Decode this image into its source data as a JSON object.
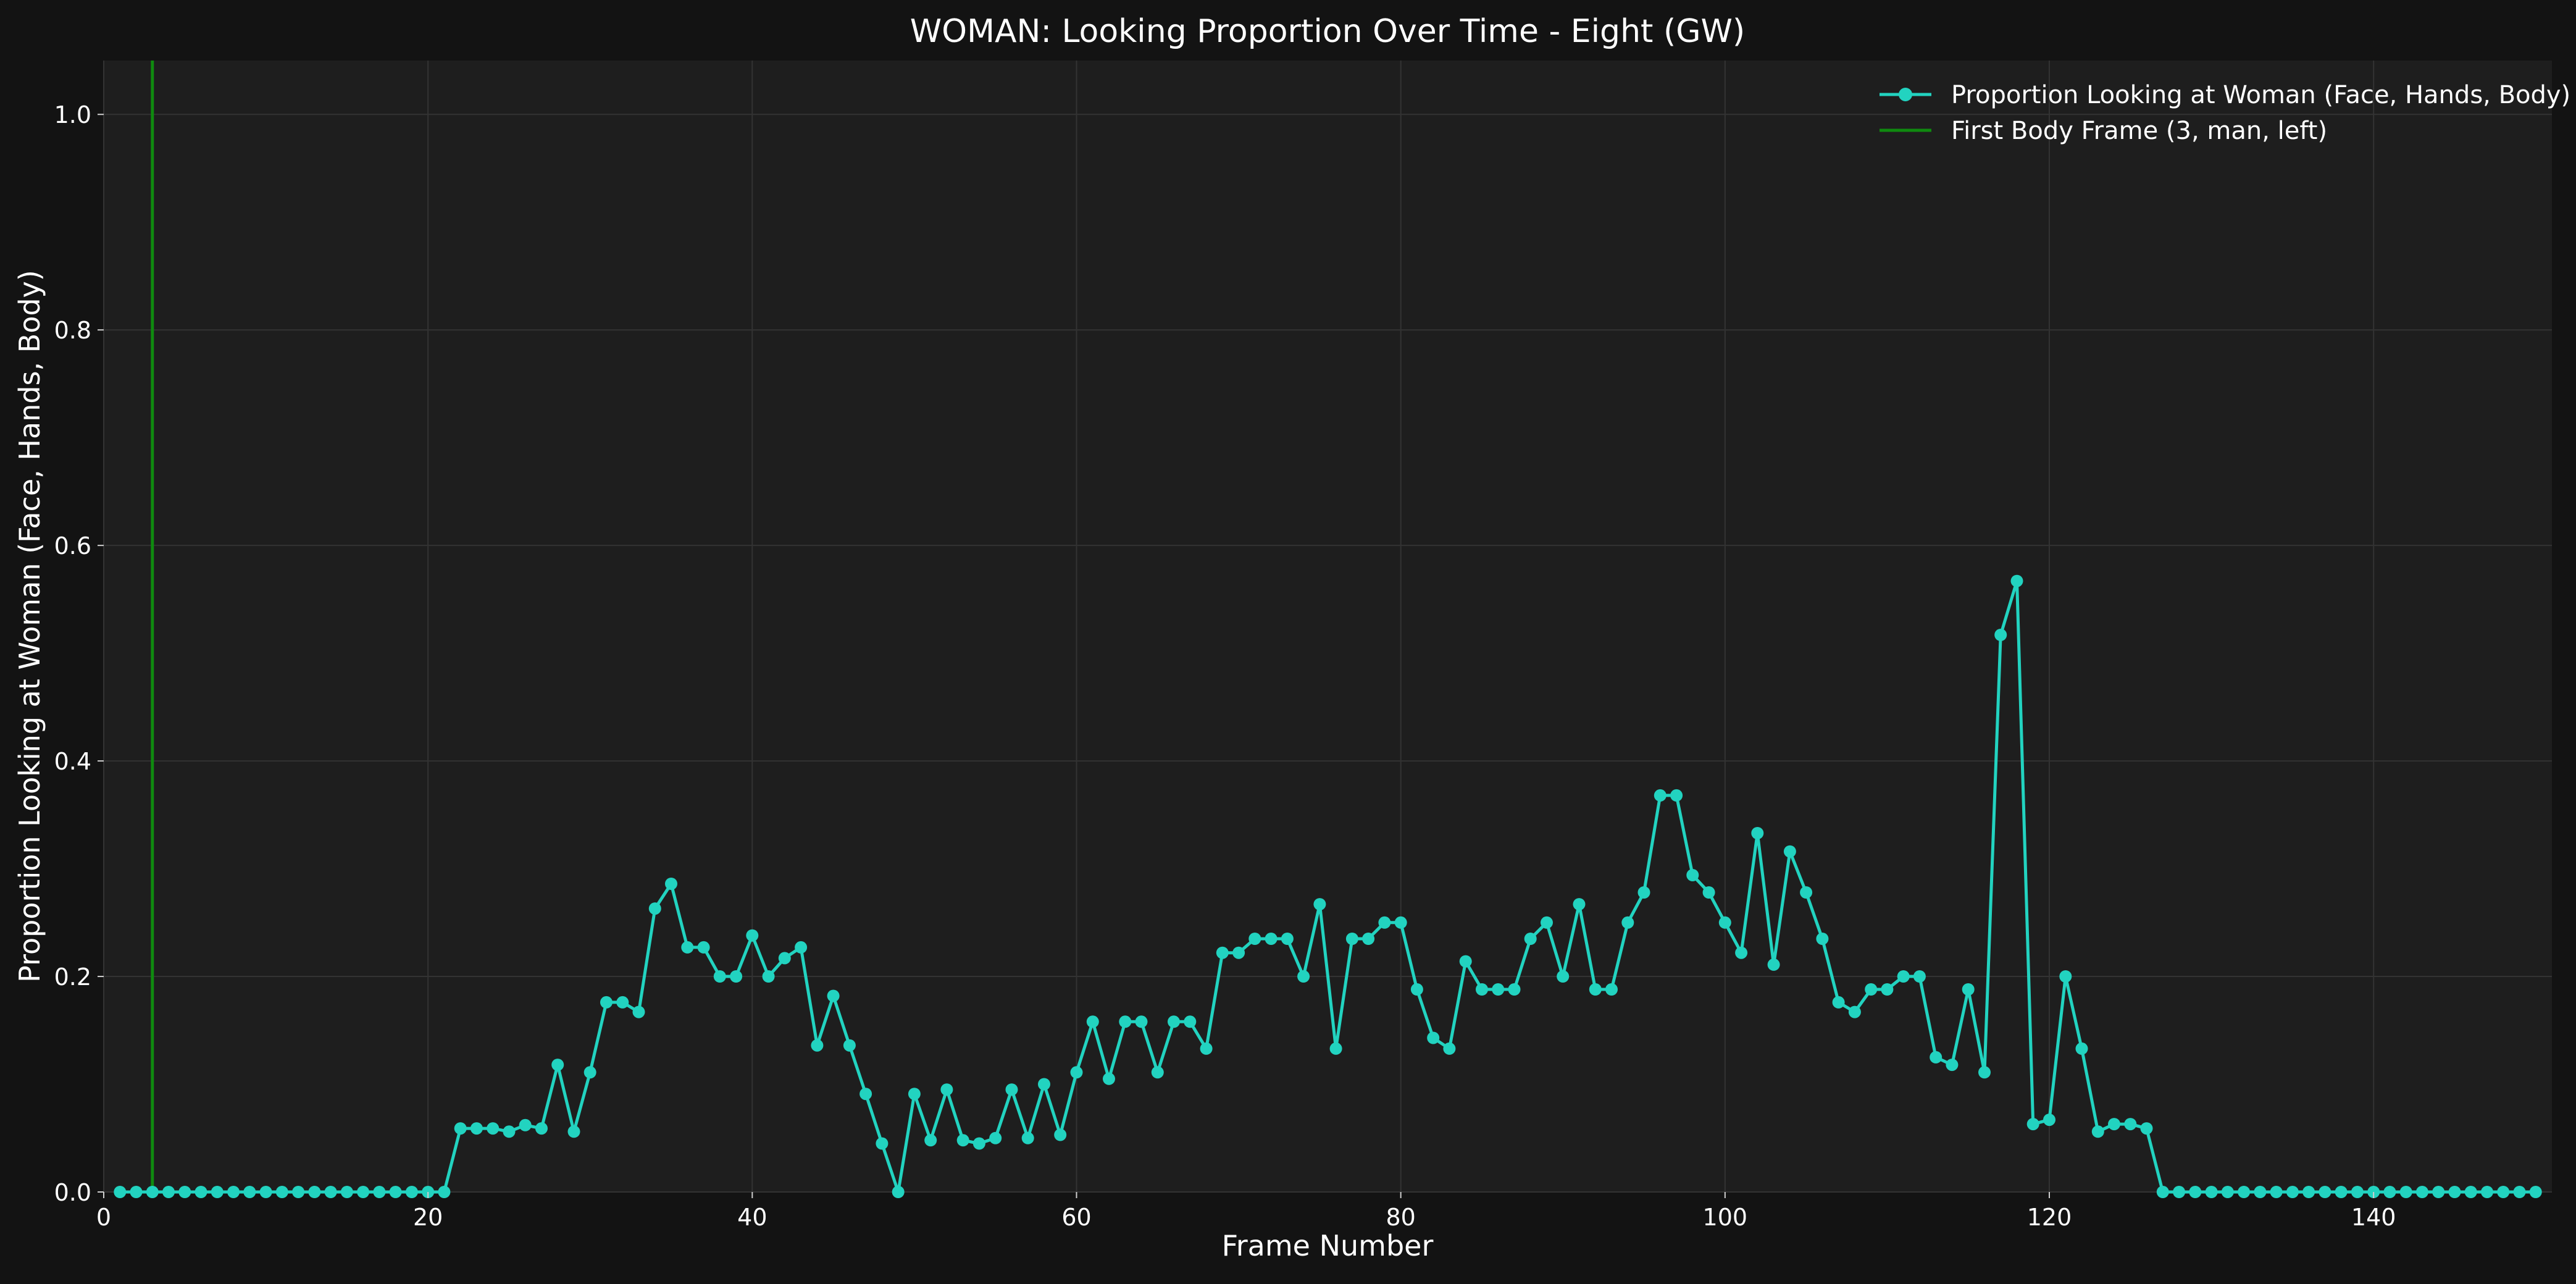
{
  "chart_data": {
    "type": "line",
    "title": "WOMAN: Looking Proportion Over Time - Eight (GW)",
    "xlabel": "Frame Number",
    "ylabel": "Proportion Looking at Woman (Face, Hands, Body)",
    "xlim": [
      0,
      151
    ],
    "ylim": [
      0,
      1.05
    ],
    "x_ticks": [
      0,
      20,
      40,
      60,
      80,
      100,
      120,
      140
    ],
    "y_ticks": [
      0.0,
      0.2,
      0.4,
      0.6,
      0.8,
      1.0
    ],
    "x_tick_labels": [
      "0",
      "20",
      "40",
      "60",
      "80",
      "100",
      "120",
      "140"
    ],
    "y_tick_labels": [
      "0.0",
      "0.2",
      "0.4",
      "0.6",
      "0.8",
      "1.0"
    ],
    "grid": true,
    "legend_position": "top-right",
    "series": [
      {
        "name": "Proportion Looking at Woman (Face, Hands, Body)",
        "color": "#22d3c0",
        "marker": "circle",
        "x": [
          1,
          2,
          3,
          4,
          5,
          6,
          7,
          8,
          9,
          10,
          11,
          12,
          13,
          14,
          15,
          16,
          17,
          18,
          19,
          20,
          21,
          22,
          23,
          24,
          25,
          26,
          27,
          28,
          29,
          30,
          31,
          32,
          33,
          34,
          35,
          36,
          37,
          38,
          39,
          40,
          41,
          42,
          43,
          44,
          45,
          46,
          47,
          48,
          49,
          50,
          51,
          52,
          53,
          54,
          55,
          56,
          57,
          58,
          59,
          60,
          61,
          62,
          63,
          64,
          65,
          66,
          67,
          68,
          69,
          70,
          71,
          72,
          73,
          74,
          75,
          76,
          77,
          78,
          79,
          80,
          81,
          82,
          83,
          84,
          85,
          86,
          87,
          88,
          89,
          90,
          91,
          92,
          93,
          94,
          95,
          96,
          97,
          98,
          99,
          100,
          101,
          102,
          103,
          104,
          105,
          106,
          107,
          108,
          109,
          110,
          111,
          112,
          113,
          114,
          115,
          116,
          117,
          118,
          119,
          120,
          121,
          122,
          123,
          124,
          125,
          126,
          127,
          128,
          129,
          130,
          131,
          132,
          133,
          134,
          135,
          136,
          137,
          138,
          139,
          140,
          141,
          142,
          143,
          144,
          145,
          146,
          147,
          148,
          149,
          150
        ],
        "values": [
          0,
          0,
          0,
          0,
          0,
          0,
          0,
          0,
          0,
          0,
          0,
          0,
          0,
          0,
          0,
          0,
          0,
          0,
          0,
          0,
          0,
          0.059,
          0.059,
          0.059,
          0.056,
          0.062,
          0.059,
          0.118,
          0.056,
          0.111,
          0.176,
          0.176,
          0.167,
          0.263,
          0.286,
          0.227,
          0.227,
          0.2,
          0.2,
          0.238,
          0.2,
          0.217,
          0.227,
          0.136,
          0.182,
          0.136,
          0.091,
          0.045,
          0,
          0.091,
          0.048,
          0.095,
          0.048,
          0.045,
          0.05,
          0.095,
          0.05,
          0.1,
          0.053,
          0.111,
          0.158,
          0.105,
          0.158,
          0.158,
          0.111,
          0.158,
          0.158,
          0.133,
          0.222,
          0.222,
          0.235,
          0.235,
          0.235,
          0.2,
          0.267,
          0.133,
          0.235,
          0.235,
          0.25,
          0.25,
          0.188,
          0.143,
          0.133,
          0.214,
          0.188,
          0.188,
          0.188,
          0.235,
          0.25,
          0.2,
          0.267,
          0.188,
          0.188,
          0.25,
          0.278,
          0.368,
          0.368,
          0.294,
          0.278,
          0.25,
          0.222,
          0.333,
          0.211,
          0.316,
          0.278,
          0.235,
          0.176,
          0.167,
          0.188,
          0.188,
          0.2,
          0.2,
          0.125,
          0.118,
          0.188,
          0.111,
          0.517,
          0.567,
          0.063,
          0.067,
          0.2,
          0.133,
          0.056,
          0.063,
          0.063,
          0.059,
          0,
          0,
          0,
          0,
          0,
          0,
          0,
          0,
          0,
          0,
          0,
          0,
          0,
          0,
          0,
          0,
          0,
          0,
          0,
          0,
          0,
          0,
          0,
          0
        ]
      },
      {
        "name": "First Body Frame (3, man, left)",
        "color": "#0f8a0f",
        "type": "vline",
        "x": 3
      }
    ]
  }
}
